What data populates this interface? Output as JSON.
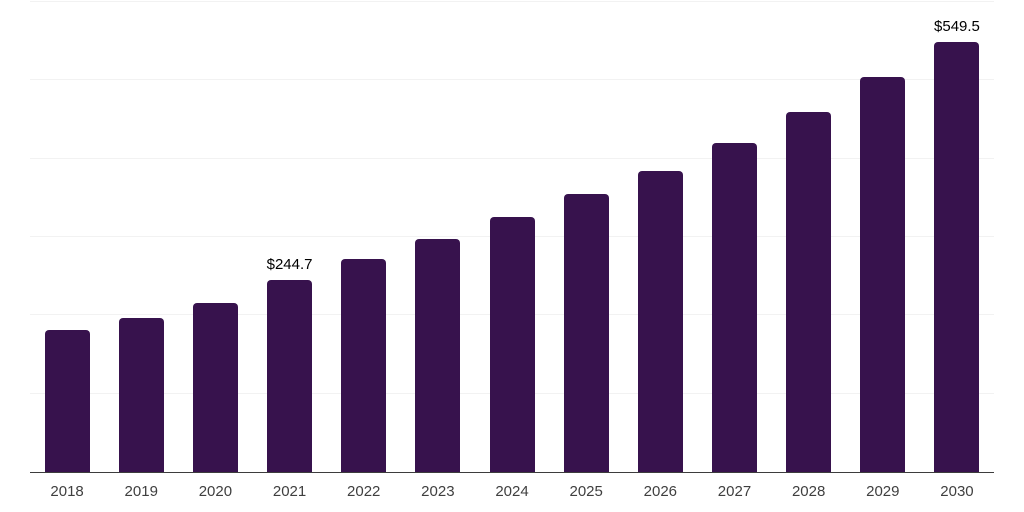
{
  "chart_data": {
    "type": "bar",
    "title": "",
    "xlabel": "",
    "ylabel": "",
    "categories": [
      "2018",
      "2019",
      "2020",
      "2021",
      "2022",
      "2023",
      "2024",
      "2025",
      "2026",
      "2027",
      "2028",
      "2029",
      "2030"
    ],
    "values": [
      181.2,
      196.1,
      216.0,
      244.7,
      271.4,
      297.5,
      326.0,
      354.3,
      384.9,
      420.6,
      460.2,
      504.9,
      549.5
    ],
    "annotations": [
      {
        "category": "2021",
        "text": "$244.7"
      },
      {
        "category": "2030",
        "text": "$549.5"
      }
    ],
    "ylim": [
      0,
      600
    ],
    "gridline_interval": 100,
    "grid": "horizontal-only",
    "y_axis_labels_visible": false,
    "legend": "none",
    "colors": {
      "bar": "#37124D",
      "axis_line": "#3D3D3D",
      "gridline": "#F2F2F2",
      "value_label": "#000000",
      "tick_label": "#3F3F3F",
      "background": "#FFFFFF"
    }
  }
}
